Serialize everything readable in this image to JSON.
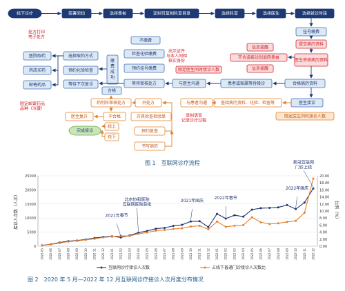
{
  "flow": {
    "top_row": [
      "线下诊疗",
      "签署须知",
      "选择患者",
      "定制可复制科室目录",
      "选择科室",
      "选择医生",
      "选择就诊时段"
    ],
    "pay_reg": "挂号缴费",
    "submit_record": "提交病历资料",
    "info_tip_1": "信息提醒",
    "info_tip_2": "信息提醒",
    "not_fit": "不合适接诊则退回患者",
    "doctor_review": "医生审核病历资料",
    "qualified_right": "合格病历资料",
    "doctor_consult": "医生接诊",
    "limit_time": "限定医生同时接诊人数",
    "patient_wait": "患者或家属等待接诊",
    "doctor_comm": "与医生沟通",
    "no_pay": "不缴费",
    "check_exam": "检查化验缴费",
    "appt_reg": "预约挂号缴费",
    "wait_approve": "等待审核处方",
    "pay_success": "缴费成功",
    "qualified": "合格",
    "drug_method": "选择取药方式",
    "appt_exam": "预约化验检查",
    "wait_revisit": "等待下次复诊",
    "pickup_hospital": "医院取药",
    "pickup_store": "药店买药",
    "mail_drug": "邮寄药品",
    "rx_print": "处方打印\n电子处方",
    "mail_note": "限定邮寄药品\n品种（冷藏）",
    "id_note": "出示证件\n与本人同相\n核实身份",
    "comm_limit": "限定沟通时间、次数",
    "rx_review": "药剂科审核处方",
    "prescribe": "开处方",
    "return_doctor": "医生复开",
    "not_qualified": "不合格",
    "doctor_comm2": "与患者沟通",
    "review_records": "查阅病历资料、化验、检查等",
    "open_exam": "开具检查检验单",
    "record_comm": "录制语音\n记录诊疗过程",
    "appt_revisit": "预约复查",
    "write_record": "书写病历",
    "online_done": "完成接诊",
    "on": "线上",
    "down": "线下",
    "caption": "图 1　互联网诊疗流程"
  },
  "colors": {
    "navy": "#1e3a74",
    "blue_border": "#3a6fb5",
    "orange": "#e0802a",
    "orange_fill": "#fde6cf",
    "red": "#d0202a",
    "pink_fill": "#fbdcdc",
    "green_fill": "#c9e7b6",
    "light_blue": "#dde8f5"
  },
  "chart_data": {
    "type": "line",
    "categories": [
      "2020-05",
      "2020-06",
      "2020-07",
      "2020-08",
      "2020-09",
      "2020-10",
      "2020-11",
      "2020-12",
      "2021-01",
      "2021-02",
      "2021-03",
      "2021-04",
      "2021-05",
      "2021-06",
      "2021-07",
      "2021-08",
      "2021-09",
      "2021-10",
      "2021-11",
      "2021-12",
      "2022-01",
      "2022-02",
      "2022-03",
      "2022-04",
      "2022-05",
      "2022-06",
      "2022-07",
      "2022-08",
      "2022-09",
      "2022-10",
      "2022-11",
      "2022-12"
    ],
    "series": [
      {
        "name": "互联网诊疗接诊人次数",
        "axis": "left",
        "color": "#1e3270",
        "values": [
          300,
          700,
          1300,
          1800,
          2000,
          2400,
          2900,
          3300,
          3500,
          3100,
          3800,
          4800,
          5400,
          6200,
          6500,
          7200,
          7600,
          8800,
          8900,
          6800,
          11500,
          9800,
          11000,
          10500,
          13000,
          13500,
          13600,
          13800,
          14600,
          13200,
          15500,
          20500
        ]
      },
      {
        "name": "占线下普通门诊接诊人次数比",
        "axis": "right",
        "color": "#e0802a",
        "values": [
          0.2,
          0.5,
          0.9,
          1.3,
          1.5,
          1.8,
          2.1,
          2.5,
          2.7,
          2.9,
          2.9,
          3.5,
          3.9,
          4.4,
          4.6,
          4.9,
          5.1,
          5.6,
          5.8,
          4.8,
          7.0,
          5.5,
          5.8,
          6.0,
          8.2,
          6.8,
          6.3,
          6.5,
          6.9,
          7.2,
          9.5,
          19.2
        ]
      }
    ],
    "ylabel": "接诊人次数（人次）",
    "y2label": "比例（%）",
    "ylim": [
      0,
      25000
    ],
    "y2lim": [
      0,
      20
    ],
    "yticks": [
      0,
      5000,
      10000,
      15000,
      20000,
      25000
    ],
    "y2ticks": [
      "0.00",
      "2.00",
      "4.00",
      "6.00",
      "8.00",
      "10.00",
      "12.00",
      "14.00",
      "16.00",
      "18.00",
      "20.00"
    ],
    "annotations": [
      {
        "text": "2021年春节",
        "index": 9
      },
      {
        "text": "北京协和医院\n互联网医院获批",
        "index": 11
      },
      {
        "text": "2021年国庆",
        "index": 17
      },
      {
        "text": "2022年春节",
        "index": 21
      },
      {
        "text": "2022年国庆",
        "index": 29
      },
      {
        "text": "新冠互联网\n门诊上线",
        "index": 31
      }
    ],
    "caption": "图 2　2020 年 5 月—2022 年 12 月互联网诊疗接诊人次月度分布情况"
  }
}
